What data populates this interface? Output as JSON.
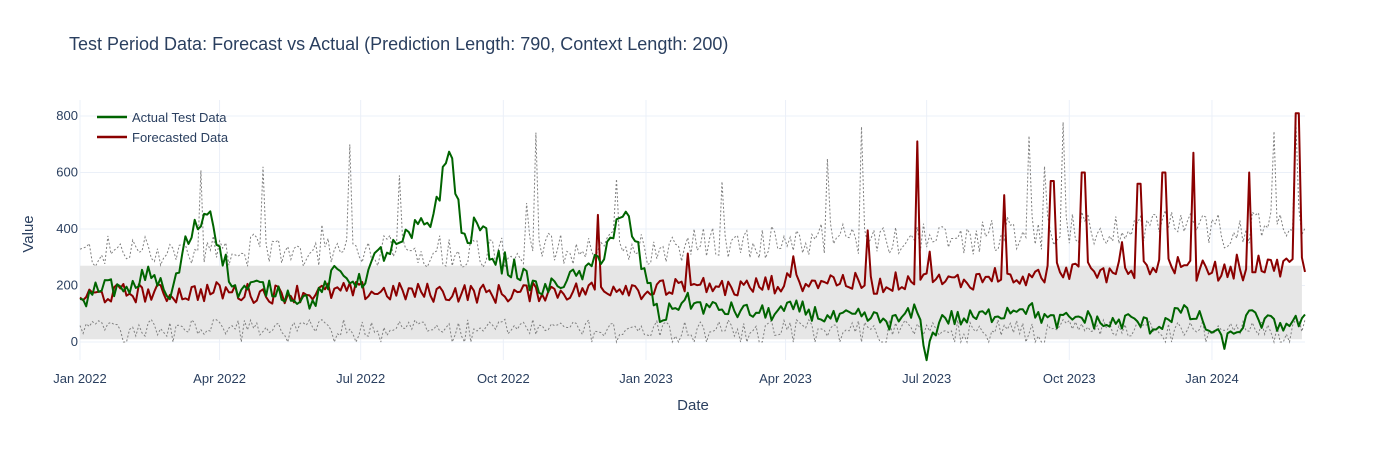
{
  "chart_data": {
    "type": "line",
    "title": "Test Period Data: Forecast vs Actual (Prediction Length: 790, Context Length: 200)",
    "xlabel": "Date",
    "ylabel": "Value",
    "x_start": "2022-01-01",
    "x_end": "2024-03-01",
    "xlim": [
      "2022-01-01",
      "2024-03-01"
    ],
    "ylim": [
      -60,
      860
    ],
    "x_ticks": [
      {
        "date": "2022-01-01",
        "label": "Jan 2022"
      },
      {
        "date": "2022-04-01",
        "label": "Apr 2022"
      },
      {
        "date": "2022-07-01",
        "label": "Jul 2022"
      },
      {
        "date": "2022-10-01",
        "label": "Oct 2022"
      },
      {
        "date": "2023-01-01",
        "label": "Jan 2023"
      },
      {
        "date": "2023-04-01",
        "label": "Apr 2023"
      },
      {
        "date": "2023-07-01",
        "label": "Jul 2023"
      },
      {
        "date": "2023-10-01",
        "label": "Oct 2023"
      },
      {
        "date": "2024-01-01",
        "label": "Jan 2024"
      }
    ],
    "y_ticks": [
      0,
      200,
      400,
      600,
      800
    ],
    "grid": true,
    "legend_position": "top-left",
    "series": [
      {
        "name": "Actual Test Data",
        "color": "#006400",
        "x": [
          "2022-01-01",
          "2022-01-15",
          "2022-02-01",
          "2022-02-15",
          "2022-02-28",
          "2022-03-10",
          "2022-03-25",
          "2022-04-10",
          "2022-04-25",
          "2022-05-15",
          "2022-06-01",
          "2022-06-15",
          "2022-07-01",
          "2022-07-15",
          "2022-07-25",
          "2022-08-05",
          "2022-08-15",
          "2022-08-22",
          "2022-08-28",
          "2022-09-05",
          "2022-09-15",
          "2022-09-25",
          "2022-10-10",
          "2022-10-25",
          "2022-11-10",
          "2022-11-25",
          "2022-12-05",
          "2022-12-12",
          "2022-12-20",
          "2022-12-28",
          "2023-01-10",
          "2023-01-25",
          "2023-02-10",
          "2023-03-01",
          "2023-03-20",
          "2023-04-10",
          "2023-05-01",
          "2023-05-20",
          "2023-06-10",
          "2023-06-25",
          "2023-07-01",
          "2023-07-10",
          "2023-07-25",
          "2023-08-15",
          "2023-09-01",
          "2023-09-20",
          "2023-10-10",
          "2023-10-25",
          "2023-11-10",
          "2023-11-25",
          "2023-12-10",
          "2023-12-25",
          "2024-01-01",
          "2024-01-10",
          "2024-01-25",
          "2024-02-10",
          "2024-02-25",
          "2024-03-01"
        ],
        "values": [
          130,
          210,
          170,
          260,
          150,
          340,
          480,
          180,
          200,
          170,
          140,
          250,
          210,
          320,
          330,
          390,
          430,
          560,
          690,
          350,
          420,
          300,
          250,
          180,
          220,
          250,
          330,
          400,
          440,
          300,
          80,
          150,
          120,
          110,
          100,
          120,
          80,
          90,
          70,
          110,
          -40,
          90,
          80,
          100,
          130,
          70,
          90,
          60,
          80,
          50,
          110,
          80,
          30,
          0,
          90,
          60,
          70,
          70
        ]
      },
      {
        "name": "Forecasted Data",
        "color": "#8b0000",
        "x": [
          "2022-01-01",
          "2022-02-01",
          "2022-03-01",
          "2022-04-01",
          "2022-05-01",
          "2022-06-01",
          "2022-07-01",
          "2022-08-01",
          "2022-09-01",
          "2022-10-01",
          "2022-11-01",
          "2022-11-20",
          "2022-12-01",
          "2022-12-20",
          "2023-01-01",
          "2023-02-01",
          "2023-03-01",
          "2023-04-01",
          "2023-05-01",
          "2023-06-01",
          "2023-06-25",
          "2023-07-10",
          "2023-08-01",
          "2023-08-20",
          "2023-09-10",
          "2023-09-25",
          "2023-10-10",
          "2023-10-25",
          "2023-11-10",
          "2023-11-25",
          "2023-12-05",
          "2023-12-20",
          "2024-01-01",
          "2024-01-15",
          "2024-02-01",
          "2024-02-15",
          "2024-02-25",
          "2024-03-01"
        ],
        "values": [
          160,
          175,
          170,
          180,
          170,
          175,
          180,
          175,
          175,
          170,
          180,
          180,
          190,
          200,
          180,
          200,
          190,
          210,
          220,
          200,
          230,
          210,
          220,
          240,
          230,
          260,
          250,
          240,
          260,
          270,
          280,
          250,
          260,
          230,
          280,
          250,
          300,
          260
        ],
        "peaks": [
          {
            "date": "2022-12-01",
            "value": 450
          },
          {
            "date": "2023-06-25",
            "value": 710
          },
          {
            "date": "2023-08-20",
            "value": 520
          },
          {
            "date": "2023-09-20",
            "value": 570
          },
          {
            "date": "2023-10-10",
            "value": 600
          },
          {
            "date": "2023-11-15",
            "value": 560
          },
          {
            "date": "2023-12-01",
            "value": 600
          },
          {
            "date": "2023-12-20",
            "value": 670
          },
          {
            "date": "2024-01-25",
            "value": 600
          },
          {
            "date": "2024-02-25",
            "value": 810
          }
        ]
      }
    ],
    "confidence_band": {
      "fill_color": "#e6e6e6",
      "line_color": "#7f7f7f",
      "lower": 10,
      "upper": 270
    }
  }
}
